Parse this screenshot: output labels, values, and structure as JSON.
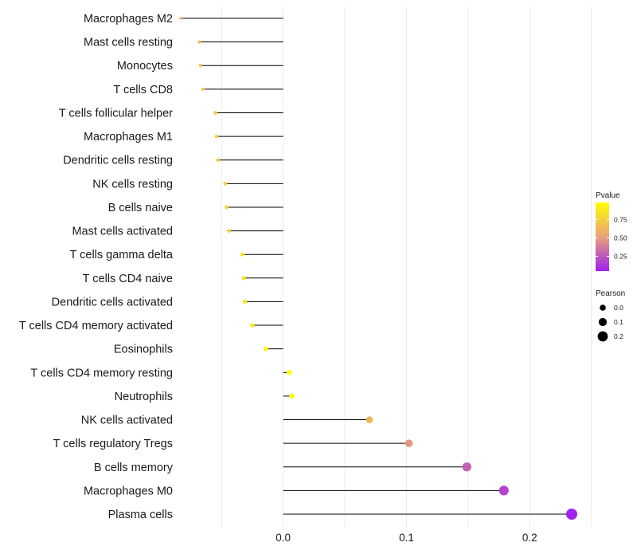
{
  "chart_data": {
    "type": "lollipop",
    "title": "",
    "xlabel": "",
    "ylabel": "",
    "xlim": [
      -0.085,
      0.245
    ],
    "xticks": [
      0.0,
      0.1,
      0.2
    ],
    "xtick_labels": [
      "0.0",
      "0.1",
      "0.2"
    ],
    "grid": true,
    "colors": {
      "low": "#a020f0",
      "mid": "#e9a07a",
      "high": "#ffff00",
      "segment": "#000000",
      "grid": "#ebebeb"
    },
    "categories": [
      "Macrophages M2",
      "Mast cells resting",
      "Monocytes",
      "T cells CD8",
      "T cells follicular helper",
      "Macrophages M1",
      "Dendritic cells resting",
      "NK cells resting",
      "B cells naive",
      "Mast cells activated",
      "T cells gamma delta",
      "T cells CD4 naive",
      "Dendritic cells activated",
      "T cells CD4 memory activated",
      "Eosinophils",
      "T cells CD4 memory resting",
      "Neutrophils",
      "NK cells activated",
      "T cells regulatory  Tregs ",
      "B cells memory",
      "Macrophages M0",
      "Plasma cells"
    ],
    "pearson": [
      -0.083,
      -0.068,
      -0.067,
      -0.065,
      -0.055,
      -0.054,
      -0.053,
      -0.047,
      -0.046,
      -0.044,
      -0.033,
      -0.032,
      -0.031,
      -0.025,
      -0.014,
      0.005,
      0.007,
      0.07,
      0.102,
      0.149,
      0.179,
      0.234
    ],
    "pvalue": [
      0.62,
      0.66,
      0.68,
      0.7,
      0.72,
      0.74,
      0.76,
      0.78,
      0.79,
      0.8,
      0.84,
      0.85,
      0.86,
      0.88,
      0.92,
      0.97,
      0.96,
      0.62,
      0.48,
      0.28,
      0.18,
      0.06
    ],
    "legend": {
      "pvalue": {
        "title": "Pvalue",
        "ticks": [
          0.25,
          0.5,
          0.75
        ],
        "tick_labels": [
          "0.25",
          "0.50",
          "0.75"
        ],
        "range": [
          0.05,
          0.98
        ]
      },
      "pearson": {
        "title": "Pearson",
        "ticks": [
          0.0,
          0.1,
          0.2
        ],
        "tick_labels": [
          "0.0",
          "0.1",
          "0.2"
        ]
      },
      "position": "right"
    }
  }
}
